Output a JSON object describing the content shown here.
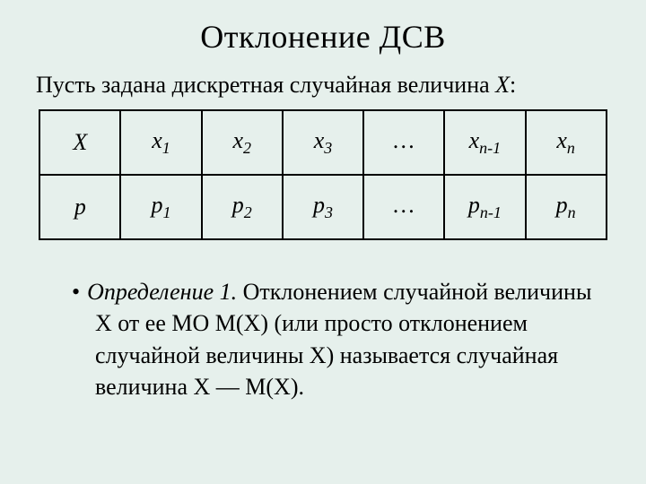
{
  "title": "Отклонение ДСВ",
  "intro_prefix": "Пусть задана дискретная случайная величина ",
  "intro_var": "X",
  "intro_suffix": ":",
  "table": {
    "rows": [
      {
        "header": "X",
        "cells": [
          {
            "base": "x",
            "sub": "1"
          },
          {
            "base": "x",
            "sub": "2"
          },
          {
            "base": "x",
            "sub": "3"
          },
          {
            "base": "…",
            "sub": ""
          },
          {
            "base": "x",
            "sub": "n-1"
          },
          {
            "base": "x",
            "sub": "n"
          }
        ]
      },
      {
        "header": "p",
        "cells": [
          {
            "base": "p",
            "sub": "1"
          },
          {
            "base": "p",
            "sub": "2"
          },
          {
            "base": "p",
            "sub": "3"
          },
          {
            "base": "…",
            "sub": ""
          },
          {
            "base": "p",
            "sub": "n-1"
          },
          {
            "base": "p",
            "sub": "n"
          }
        ]
      }
    ]
  },
  "definition": {
    "bullet": "•",
    "label": "Определение 1.",
    "body": " Отклонением случайной величины X от ее МО M(X) (или просто отклонением случайной величины X) называется случайная величина X — M(X)."
  },
  "styles": {
    "background_color": "#e6f0ec",
    "text_color": "#000000",
    "border_color": "#000000",
    "title_fontsize": 36,
    "body_fontsize": 26,
    "sub_fontsize": 18,
    "font_family": "Times New Roman"
  }
}
